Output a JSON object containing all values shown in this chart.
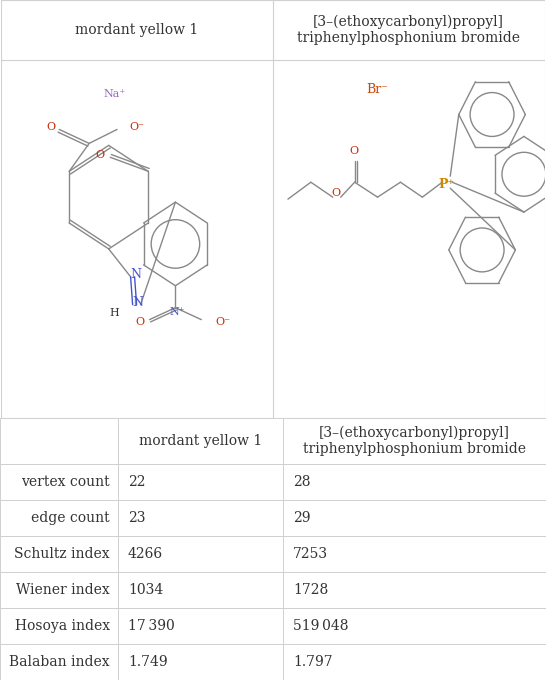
{
  "col1_header": "mordant yellow 1",
  "col2_header": "[3–(ethoxycarbonyl)propyl]\ntriphenylphosphonium bromide",
  "row_labels": [
    "vertex count",
    "edge count",
    "Schultz index",
    "Wiener index",
    "Hosoya index",
    "Balaban index"
  ],
  "col1_values": [
    "22",
    "23",
    "4266",
    "1034",
    "17 390",
    "1.749"
  ],
  "col2_values": [
    "28",
    "29",
    "7253",
    "1728",
    "519 048",
    "1.797"
  ],
  "bg_color": "#ffffff",
  "grid_color": "#d0d0d0",
  "text_color": "#333333",
  "header_fontsize": 10,
  "cell_fontsize": 10,
  "na_color": "#9966bb",
  "br_color": "#cc4400",
  "o_color": "#cc2200",
  "n_color": "#4455cc",
  "p_color": "#cc8800",
  "bond_color": "#888888",
  "figw": 5.46,
  "figh": 6.8,
  "dpi": 100
}
